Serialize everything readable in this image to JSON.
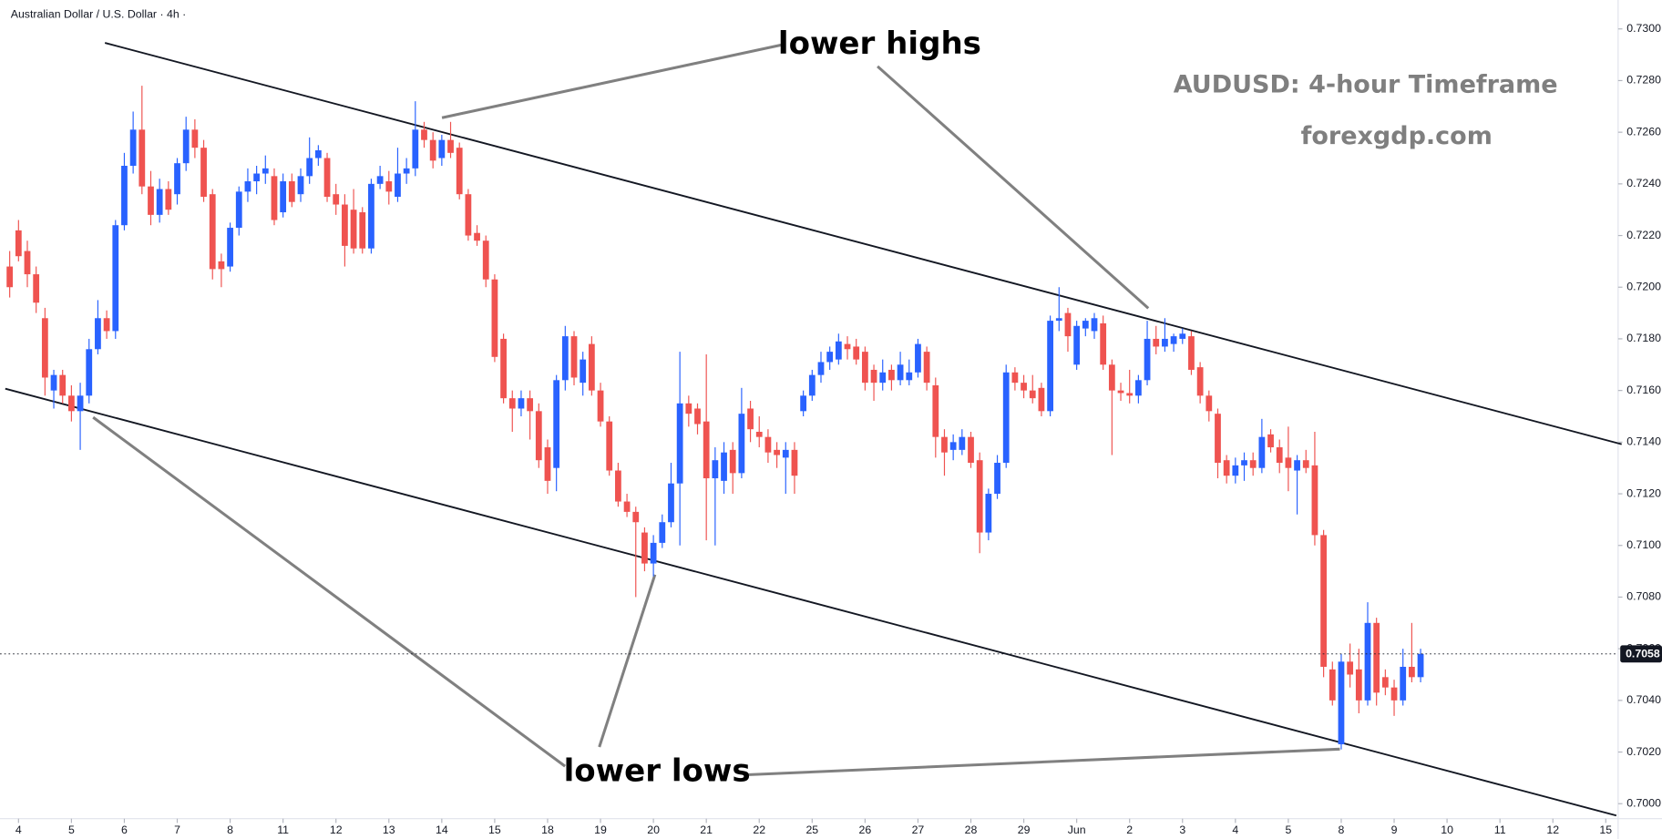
{
  "chart_data": {
    "type": "candlestick",
    "header": "Australian Dollar / U.S. Dollar · 4h ·",
    "title": "AUDUSD: 4-hour Timeframe",
    "subtitle": "forexgdp.com",
    "annotations": [
      "lower highs",
      "lower lows"
    ],
    "up_color": "#2962ff",
    "down_color": "#ef5350",
    "open": [
      0.7208,
      0.7222,
      0.7214,
      0.7205,
      0.7188,
      0.716,
      0.7166,
      0.7158,
      0.7152,
      0.7158,
      0.7176,
      0.7188,
      0.7183,
      0.7224,
      0.7247,
      0.7261,
      0.7239,
      0.7228,
      0.7238,
      0.7236,
      0.7248,
      0.7261,
      0.7254,
      0.7236,
      0.721,
      0.7208,
      0.7223,
      0.7237,
      0.7241,
      0.7244,
      0.7243,
      0.7229,
      0.7241,
      0.7236,
      0.7243,
      0.725,
      0.725,
      0.7236,
      0.7232,
      0.723,
      0.7229,
      0.7215,
      0.724,
      0.7241,
      0.7235,
      0.7244,
      0.7246,
      0.7261,
      0.7257,
      0.725,
      0.7257,
      0.7254,
      0.7236,
      0.7221,
      0.7218,
      0.7203,
      0.718,
      0.7157,
      0.7153,
      0.7157,
      0.7152,
      0.7138,
      0.713,
      0.7164,
      0.7181,
      0.7163,
      0.7178,
      0.716,
      0.7148,
      0.7129,
      0.7117,
      0.7113,
      0.7105,
      0.7093,
      0.7101,
      0.7109,
      0.7124,
      0.7155,
      0.7153,
      0.7148,
      0.7126,
      0.7125,
      0.7137,
      0.7128,
      0.7153,
      0.7144,
      0.7142,
      0.7137,
      0.7134,
      0.7137,
      0.7152,
      0.7158,
      0.7166,
      0.7171,
      0.7172,
      0.7178,
      0.7177,
      0.7175,
      0.7168,
      0.7163,
      0.7168,
      0.7164,
      0.7164,
      0.7167,
      0.7175,
      0.7162,
      0.7142,
      0.7137,
      0.7137,
      0.7142,
      0.7133,
      0.7105,
      0.712,
      0.7132,
      0.7167,
      0.7163,
      0.716,
      0.7161,
      0.7152,
      0.7187,
      0.719,
      0.717,
      0.7184,
      0.7183,
      0.7186,
      0.717,
      0.716,
      0.7159,
      0.7158,
      0.7164,
      0.718,
      0.7177,
      0.7178,
      0.718,
      0.7181,
      0.7169,
      0.7158,
      0.7151,
      0.7133,
      0.7127,
      0.7131,
      0.7133,
      0.713,
      0.7143,
      0.7138,
      0.7134,
      0.7129,
      0.7133,
      0.7131,
      0.7104,
      0.7052,
      0.7023,
      0.7055,
      0.7052,
      0.704,
      0.707,
      0.7049,
      0.7045,
      0.704,
      0.7053,
      0.7049
    ],
    "high": [
      0.7214,
      0.7226,
      0.7218,
      0.7208,
      0.7192,
      0.7168,
      0.7168,
      0.7162,
      0.7163,
      0.718,
      0.7195,
      0.7191,
      0.7226,
      0.7252,
      0.7268,
      0.7278,
      0.7245,
      0.7242,
      0.7241,
      0.725,
      0.7266,
      0.7265,
      0.7257,
      0.7238,
      0.7213,
      0.7225,
      0.7239,
      0.7246,
      0.7247,
      0.7251,
      0.7246,
      0.7244,
      0.7244,
      0.7246,
      0.7258,
      0.7255,
      0.7252,
      0.724,
      0.7236,
      0.7238,
      0.7231,
      0.7242,
      0.7247,
      0.7245,
      0.7254,
      0.725,
      0.7272,
      0.7264,
      0.726,
      0.7259,
      0.7264,
      0.7256,
      0.7238,
      0.7224,
      0.722,
      0.7205,
      0.7182,
      0.716,
      0.716,
      0.716,
      0.7155,
      0.7141,
      0.7166,
      0.7185,
      0.7183,
      0.7175,
      0.7181,
      0.7163,
      0.715,
      0.7132,
      0.712,
      0.7115,
      0.7107,
      0.7104,
      0.7112,
      0.7132,
      0.7175,
      0.7158,
      0.7155,
      0.7174,
      0.7138,
      0.714,
      0.714,
      0.7161,
      0.7156,
      0.715,
      0.7145,
      0.714,
      0.714,
      0.714,
      0.716,
      0.7168,
      0.7175,
      0.7177,
      0.7182,
      0.7181,
      0.718,
      0.7177,
      0.717,
      0.7172,
      0.717,
      0.7175,
      0.7172,
      0.718,
      0.7177,
      0.7165,
      0.7145,
      0.7143,
      0.7145,
      0.7144,
      0.7136,
      0.7122,
      0.7135,
      0.717,
      0.7169,
      0.7166,
      0.7166,
      0.7163,
      0.7189,
      0.72,
      0.7192,
      0.7187,
      0.7188,
      0.719,
      0.7189,
      0.7172,
      0.7163,
      0.7168,
      0.7166,
      0.7187,
      0.7185,
      0.7188,
      0.7182,
      0.7184,
      0.7183,
      0.7171,
      0.716,
      0.7153,
      0.7135,
      0.7134,
      0.7136,
      0.7136,
      0.7149,
      0.7145,
      0.7141,
      0.7146,
      0.7135,
      0.7137,
      0.7144,
      0.7106,
      0.7055,
      0.7058,
      0.7062,
      0.706,
      0.7078,
      0.7072,
      0.7052,
      0.7048,
      0.706,
      0.707,
      0.706
    ],
    "low": [
      0.7196,
      0.721,
      0.72,
      0.719,
      0.7158,
      0.7153,
      0.7155,
      0.7148,
      0.7137,
      0.7155,
      0.7174,
      0.718,
      0.718,
      0.7222,
      0.7244,
      0.7236,
      0.7224,
      0.7225,
      0.7228,
      0.7232,
      0.7245,
      0.725,
      0.7233,
      0.7203,
      0.72,
      0.7206,
      0.722,
      0.7233,
      0.7236,
      0.724,
      0.7224,
      0.7227,
      0.7231,
      0.7233,
      0.724,
      0.7247,
      0.7233,
      0.7228,
      0.7208,
      0.7213,
      0.7213,
      0.7213,
      0.7238,
      0.7232,
      0.7233,
      0.724,
      0.7243,
      0.7254,
      0.7246,
      0.7247,
      0.725,
      0.7234,
      0.7218,
      0.7216,
      0.72,
      0.7171,
      0.7155,
      0.7144,
      0.715,
      0.7141,
      0.713,
      0.712,
      0.7121,
      0.716,
      0.7162,
      0.7158,
      0.7158,
      0.7146,
      0.7127,
      0.7115,
      0.7111,
      0.708,
      0.709,
      0.7088,
      0.7099,
      0.7107,
      0.71,
      0.7146,
      0.7143,
      0.7102,
      0.71,
      0.712,
      0.712,
      0.7126,
      0.714,
      0.7138,
      0.7132,
      0.713,
      0.712,
      0.712,
      0.715,
      0.7156,
      0.7163,
      0.7168,
      0.717,
      0.7172,
      0.717,
      0.716,
      0.7156,
      0.716,
      0.716,
      0.7162,
      0.7162,
      0.7165,
      0.716,
      0.7134,
      0.7127,
      0.7133,
      0.7135,
      0.713,
      0.7097,
      0.7102,
      0.7118,
      0.713,
      0.716,
      0.7157,
      0.7155,
      0.715,
      0.715,
      0.7183,
      0.7175,
      0.7168,
      0.7181,
      0.718,
      0.7168,
      0.7135,
      0.7156,
      0.7155,
      0.7155,
      0.7162,
      0.7174,
      0.7175,
      0.7175,
      0.7178,
      0.7166,
      0.7155,
      0.7148,
      0.7126,
      0.7124,
      0.7124,
      0.7125,
      0.7127,
      0.7128,
      0.7136,
      0.7128,
      0.7121,
      0.7112,
      0.7128,
      0.71,
      0.7049,
      0.7038,
      0.7021,
      0.7045,
      0.7035,
      0.7038,
      0.7038,
      0.7042,
      0.7034,
      0.7038,
      0.7047,
      0.7047
    ],
    "close": [
      0.72,
      0.7212,
      0.7205,
      0.7194,
      0.7165,
      0.7166,
      0.7158,
      0.7152,
      0.7158,
      0.7176,
      0.7188,
      0.7183,
      0.7224,
      0.7247,
      0.7261,
      0.7239,
      0.7228,
      0.7238,
      0.723,
      0.7248,
      0.7261,
      0.7254,
      0.7235,
      0.7207,
      0.7207,
      0.7223,
      0.7237,
      0.7241,
      0.7244,
      0.7246,
      0.7226,
      0.7241,
      0.7233,
      0.7243,
      0.725,
      0.7253,
      0.7235,
      0.7232,
      0.7216,
      0.7215,
      0.7215,
      0.724,
      0.7243,
      0.7237,
      0.7244,
      0.7246,
      0.7261,
      0.7257,
      0.7249,
      0.7257,
      0.7252,
      0.7236,
      0.722,
      0.7218,
      0.7203,
      0.7173,
      0.7157,
      0.7153,
      0.7157,
      0.7152,
      0.7133,
      0.7125,
      0.7164,
      0.7181,
      0.7165,
      0.7172,
      0.716,
      0.7148,
      0.7129,
      0.7117,
      0.7113,
      0.7109,
      0.7093,
      0.7101,
      0.7109,
      0.7124,
      0.7155,
      0.7151,
      0.7147,
      0.7126,
      0.7133,
      0.7136,
      0.7128,
      0.7151,
      0.7145,
      0.7142,
      0.7136,
      0.7135,
      0.7137,
      0.7127,
      0.7158,
      0.7166,
      0.7171,
      0.7175,
      0.7179,
      0.7176,
      0.7172,
      0.7163,
      0.7163,
      0.7167,
      0.7164,
      0.717,
      0.7167,
      0.7178,
      0.7163,
      0.7142,
      0.7136,
      0.714,
      0.7142,
      0.7132,
      0.7105,
      0.712,
      0.7132,
      0.7167,
      0.7163,
      0.716,
      0.7157,
      0.7152,
      0.7187,
      0.7188,
      0.7181,
      0.7185,
      0.7187,
      0.7188,
      0.717,
      0.716,
      0.7159,
      0.7158,
      0.7164,
      0.718,
      0.7177,
      0.718,
      0.7181,
      0.7182,
      0.7168,
      0.7158,
      0.7152,
      0.7132,
      0.7127,
      0.7131,
      0.7133,
      0.713,
      0.7142,
      0.7138,
      0.7132,
      0.713,
      0.7133,
      0.713,
      0.7104,
      0.7053,
      0.704,
      0.7055,
      0.705,
      0.704,
      0.707,
      0.7043,
      0.7045,
      0.704,
      0.7053,
      0.7049,
      0.7058
    ],
    "last_price": {
      "value": 0.7058,
      "label": "0.7058"
    },
    "trendlines": [
      {
        "x": [
          10.8,
          182.8
        ],
        "y": [
          0.72946,
          0.71392
        ]
      },
      {
        "x": [
          -0.5,
          182.2
        ],
        "y": [
          0.71607,
          0.69954
        ]
      }
    ],
    "xlim": [
      -1.1,
      182.4
    ],
    "ylim": [
      0.69942,
      0.73112
    ],
    "xticks": [
      {
        "value": 1,
        "label": "4"
      },
      {
        "value": 7,
        "label": "5"
      },
      {
        "value": 13,
        "label": "6"
      },
      {
        "value": 19,
        "label": "7"
      },
      {
        "value": 25,
        "label": "8"
      },
      {
        "value": 31,
        "label": "11"
      },
      {
        "value": 37,
        "label": "12"
      },
      {
        "value": 43,
        "label": "13"
      },
      {
        "value": 49,
        "label": "14"
      },
      {
        "value": 55,
        "label": "15"
      },
      {
        "value": 61,
        "label": "18"
      },
      {
        "value": 67,
        "label": "19"
      },
      {
        "value": 73,
        "label": "20"
      },
      {
        "value": 79,
        "label": "21"
      },
      {
        "value": 85,
        "label": "22"
      },
      {
        "value": 91,
        "label": "25"
      },
      {
        "value": 97,
        "label": "26"
      },
      {
        "value": 103,
        "label": "27"
      },
      {
        "value": 109,
        "label": "28"
      },
      {
        "value": 115,
        "label": "29"
      },
      {
        "value": 121,
        "label": "Jun"
      },
      {
        "value": 127,
        "label": "2"
      },
      {
        "value": 133,
        "label": "3"
      },
      {
        "value": 139,
        "label": "4"
      },
      {
        "value": 145,
        "label": "5"
      },
      {
        "value": 151,
        "label": "8"
      },
      {
        "value": 157,
        "label": "9"
      },
      {
        "value": 163,
        "label": "10"
      },
      {
        "value": 169,
        "label": "11"
      },
      {
        "value": 175,
        "label": "12"
      },
      {
        "value": 181,
        "label": "15"
      }
    ],
    "yticks": [
      {
        "value": 0.7,
        "label": "0.7000"
      },
      {
        "value": 0.702,
        "label": "0.7020"
      },
      {
        "value": 0.704,
        "label": "0.7040"
      },
      {
        "value": 0.706,
        "label": "0.7060"
      },
      {
        "value": 0.708,
        "label": "0.7080"
      },
      {
        "value": 0.71,
        "label": "0.7100"
      },
      {
        "value": 0.712,
        "label": "0.7120"
      },
      {
        "value": 0.714,
        "label": "0.7140"
      },
      {
        "value": 0.716,
        "label": "0.7160"
      },
      {
        "value": 0.718,
        "label": "0.7180"
      },
      {
        "value": 0.72,
        "label": "0.7200"
      },
      {
        "value": 0.722,
        "label": "0.7220"
      },
      {
        "value": 0.724,
        "label": "0.7240"
      },
      {
        "value": 0.726,
        "label": "0.7260"
      },
      {
        "value": 0.728,
        "label": "0.7280"
      },
      {
        "value": 0.73,
        "label": "0.7300"
      }
    ]
  }
}
